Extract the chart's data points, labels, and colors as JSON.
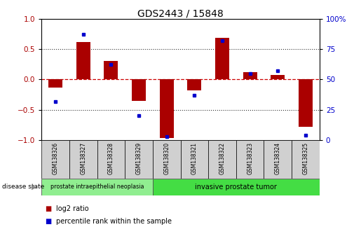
{
  "title": "GDS2443 / 15848",
  "samples": [
    "GSM138326",
    "GSM138327",
    "GSM138328",
    "GSM138329",
    "GSM138320",
    "GSM138321",
    "GSM138322",
    "GSM138323",
    "GSM138324",
    "GSM138325"
  ],
  "log2_ratio": [
    -0.13,
    0.62,
    0.3,
    -0.35,
    -0.96,
    -0.18,
    0.68,
    0.12,
    0.07,
    -0.78
  ],
  "percentile_rank": [
    32,
    87,
    62,
    20,
    3,
    37,
    82,
    55,
    57,
    4
  ],
  "bar_color": "#aa0000",
  "dot_color": "#0000cc",
  "ylim_left": [
    -1,
    1
  ],
  "ylim_right": [
    0,
    100
  ],
  "yticks_left": [
    -1,
    -0.5,
    0,
    0.5,
    1
  ],
  "yticks_right": [
    0,
    25,
    50,
    75,
    100
  ],
  "hline_y0_color": "#cc0000",
  "hline_dotted_color": "#333333",
  "group1_label": "prostate intraepithelial neoplasia",
  "group2_label": "invasive prostate tumor",
  "group1_color": "#90ee90",
  "group2_color": "#44dd44",
  "group1_samples": [
    0,
    1,
    2,
    3
  ],
  "group2_samples": [
    4,
    5,
    6,
    7,
    8,
    9
  ],
  "disease_state_label": "disease state",
  "legend_red_label": "log2 ratio",
  "legend_blue_label": "percentile rank within the sample",
  "bar_width": 0.5,
  "background_color": "#ffffff",
  "label_box_color": "#d0d0d0",
  "spine_color": "#000000"
}
